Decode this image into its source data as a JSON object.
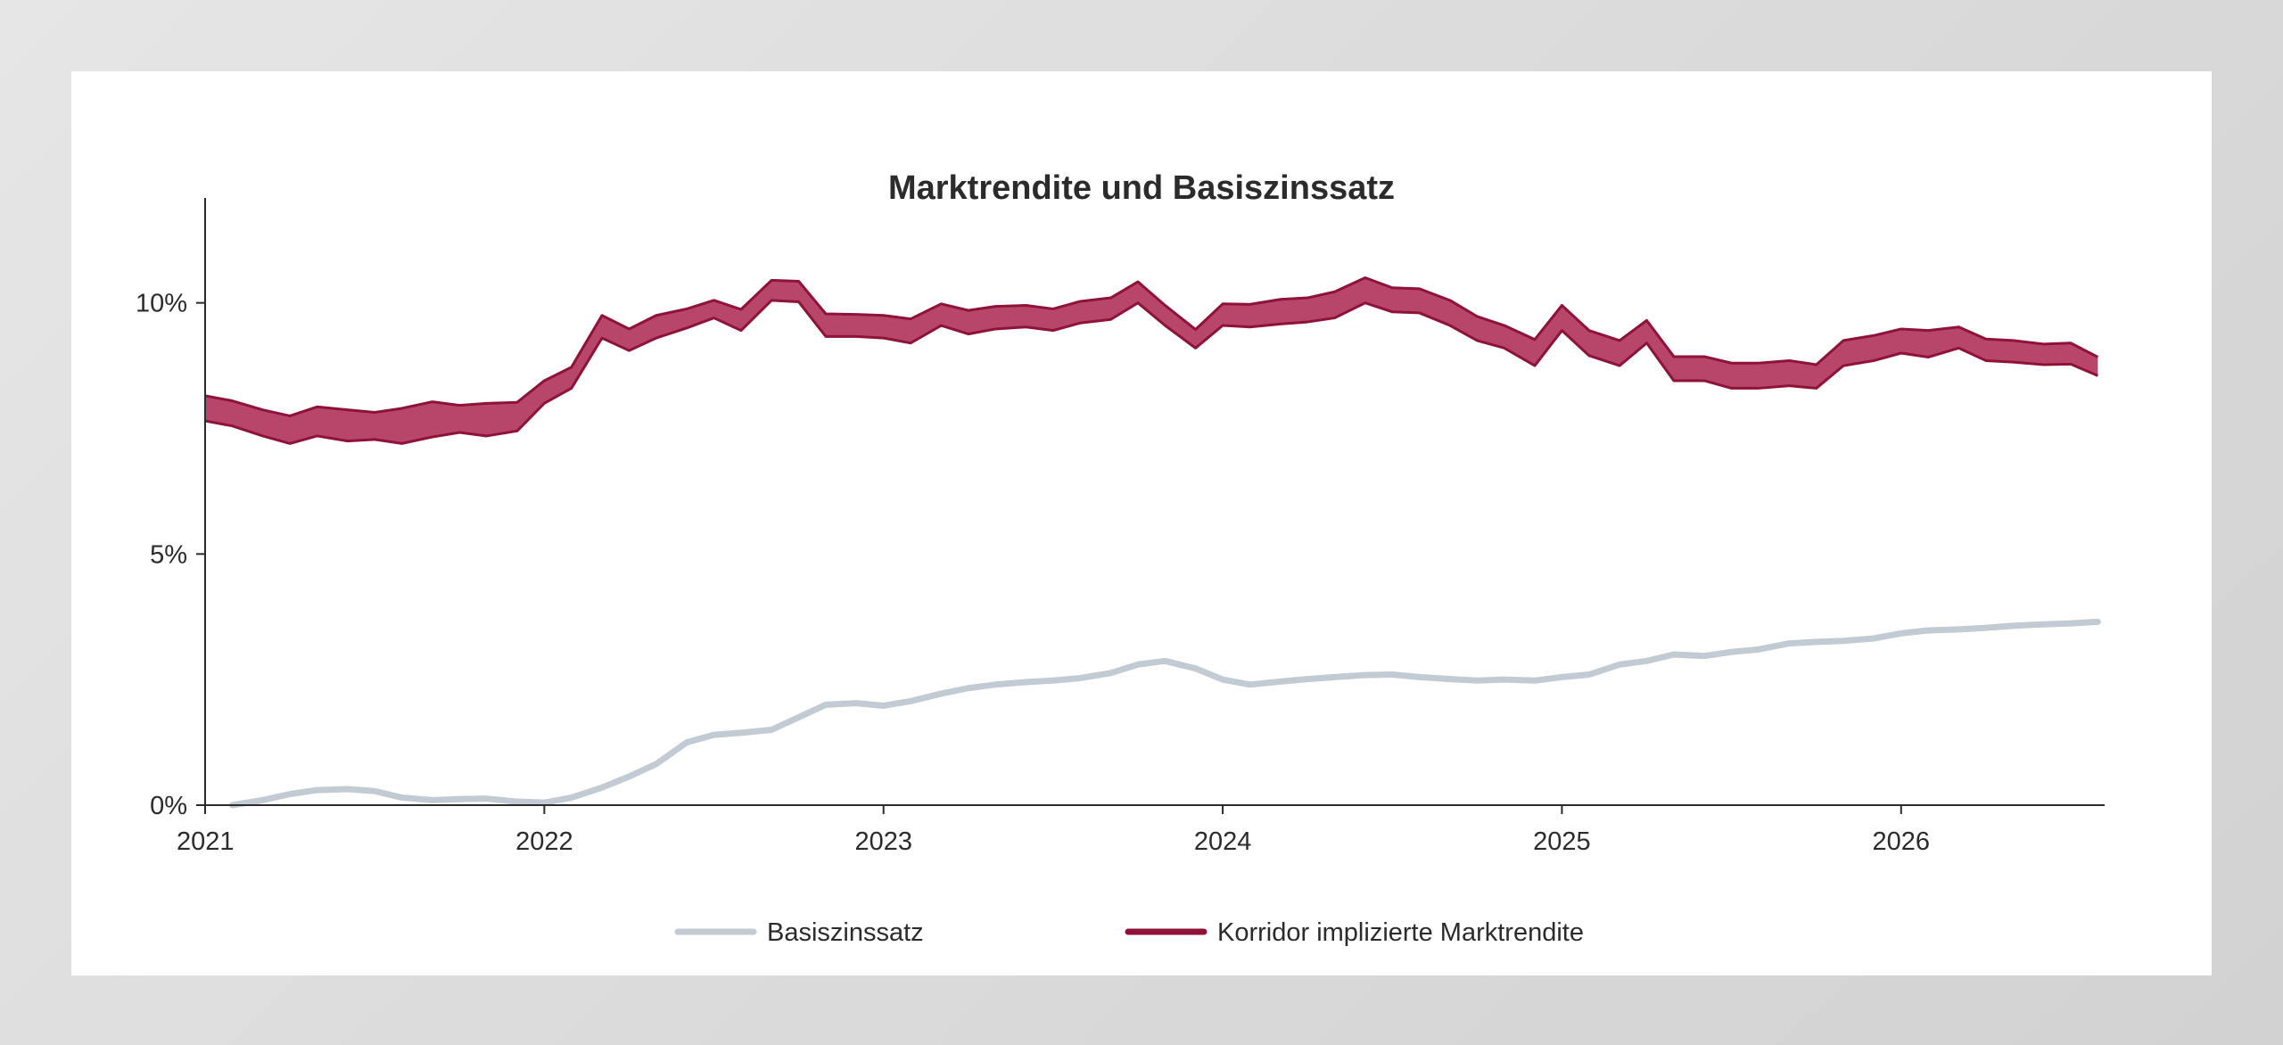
{
  "title": "Marktrendite und Basiszinssatz",
  "chart_data": {
    "type": "line",
    "title": "Marktrendite und Basiszinssatz",
    "x_unit": "year",
    "xlim": [
      2021,
      2026.6
    ],
    "ylim": [
      0,
      12
    ],
    "grid": false,
    "y_ticks": [
      {
        "value": 0,
        "label": "0%"
      },
      {
        "value": 5,
        "label": "5%"
      },
      {
        "value": 10,
        "label": "10%"
      }
    ],
    "x_ticks": [
      {
        "value": 2021,
        "label": "2021"
      },
      {
        "value": 2022,
        "label": "2022"
      },
      {
        "value": 2023,
        "label": "2023"
      },
      {
        "value": 2024,
        "label": "2024"
      },
      {
        "value": 2025,
        "label": "2025"
      },
      {
        "value": 2026,
        "label": "2026"
      }
    ],
    "legend_position": "bottom-center",
    "colors": {
      "basiszins": "#c2cbd3",
      "corridor_fill": "#b8456a",
      "corridor_edge": "#8f1238",
      "axis": "#2b2b2b"
    },
    "series": [
      {
        "name": "Basiszinssatz",
        "kind": "line",
        "x": [
          2021.08,
          2021.17,
          2021.25,
          2021.33,
          2021.42,
          2021.5,
          2021.58,
          2021.67,
          2021.75,
          2021.83,
          2021.92,
          2022.0,
          2022.08,
          2022.17,
          2022.25,
          2022.33,
          2022.42,
          2022.5,
          2022.58,
          2022.67,
          2022.75,
          2022.83,
          2022.92,
          2023.0,
          2023.08,
          2023.17,
          2023.25,
          2023.33,
          2023.42,
          2023.5,
          2023.58,
          2023.67,
          2023.75,
          2023.83,
          2023.92,
          2024.0,
          2024.08,
          2024.17,
          2024.25,
          2024.33,
          2024.42,
          2024.5,
          2024.58,
          2024.67,
          2024.75,
          2024.83,
          2024.92,
          2025.0,
          2025.08,
          2025.17,
          2025.25,
          2025.33,
          2025.42,
          2025.5,
          2025.58,
          2025.67,
          2025.75,
          2025.83,
          2025.92,
          2026.0,
          2026.08,
          2026.17,
          2026.25,
          2026.33,
          2026.42,
          2026.5,
          2026.58
        ],
        "y": [
          0.0,
          0.1,
          0.22,
          0.3,
          0.32,
          0.28,
          0.15,
          0.1,
          0.12,
          0.13,
          0.07,
          0.05,
          0.15,
          0.35,
          0.57,
          0.82,
          1.25,
          1.4,
          1.44,
          1.5,
          1.75,
          2.0,
          2.03,
          1.98,
          2.07,
          2.22,
          2.33,
          2.4,
          2.45,
          2.48,
          2.53,
          2.63,
          2.8,
          2.87,
          2.72,
          2.5,
          2.4,
          2.46,
          2.51,
          2.55,
          2.59,
          2.6,
          2.55,
          2.51,
          2.48,
          2.5,
          2.48,
          2.55,
          2.6,
          2.8,
          2.87,
          3.0,
          2.97,
          3.05,
          3.1,
          3.22,
          3.25,
          3.27,
          3.32,
          3.42,
          3.48,
          3.5,
          3.53,
          3.57,
          3.6,
          3.62,
          3.65
        ]
      },
      {
        "name": "Korridor implizierte Marktrendite",
        "kind": "band",
        "x": [
          2021.0,
          2021.08,
          2021.17,
          2021.25,
          2021.33,
          2021.42,
          2021.5,
          2021.58,
          2021.67,
          2021.75,
          2021.83,
          2021.92,
          2022.0,
          2022.08,
          2022.17,
          2022.25,
          2022.33,
          2022.42,
          2022.5,
          2022.58,
          2022.67,
          2022.75,
          2022.83,
          2022.92,
          2023.0,
          2023.08,
          2023.17,
          2023.25,
          2023.33,
          2023.42,
          2023.5,
          2023.58,
          2023.67,
          2023.75,
          2023.83,
          2023.92,
          2024.0,
          2024.08,
          2024.17,
          2024.25,
          2024.33,
          2024.42,
          2024.5,
          2024.58,
          2024.67,
          2024.75,
          2024.83,
          2024.92,
          2025.0,
          2025.08,
          2025.17,
          2025.25,
          2025.33,
          2025.42,
          2025.5,
          2025.58,
          2025.67,
          2025.75,
          2025.83,
          2025.92,
          2026.0,
          2026.08,
          2026.17,
          2026.25,
          2026.33,
          2026.42,
          2026.5,
          2026.58
        ],
        "lower": [
          7.65,
          7.55,
          7.35,
          7.2,
          7.35,
          7.25,
          7.28,
          7.2,
          7.33,
          7.42,
          7.35,
          7.45,
          8.0,
          8.3,
          9.3,
          9.05,
          9.3,
          9.5,
          9.7,
          9.45,
          10.05,
          10.02,
          9.33,
          9.33,
          9.3,
          9.2,
          9.55,
          9.38,
          9.48,
          9.52,
          9.45,
          9.6,
          9.67,
          10.0,
          9.55,
          9.1,
          9.55,
          9.52,
          9.58,
          9.62,
          9.7,
          10.0,
          9.82,
          9.8,
          9.55,
          9.25,
          9.1,
          8.75,
          9.45,
          8.95,
          8.75,
          9.2,
          8.45,
          8.45,
          8.3,
          8.3,
          8.35,
          8.3,
          8.75,
          8.85,
          9.0,
          8.92,
          9.1,
          8.85,
          8.82,
          8.77,
          8.78,
          8.55
        ],
        "upper": [
          8.15,
          8.05,
          7.87,
          7.75,
          7.93,
          7.87,
          7.82,
          7.9,
          8.03,
          7.96,
          8.0,
          8.02,
          8.45,
          8.72,
          9.75,
          9.48,
          9.75,
          9.88,
          10.05,
          9.87,
          10.45,
          10.43,
          9.78,
          9.77,
          9.75,
          9.68,
          9.98,
          9.85,
          9.93,
          9.95,
          9.88,
          10.03,
          10.1,
          10.42,
          9.95,
          9.47,
          9.98,
          9.97,
          10.07,
          10.1,
          10.22,
          10.5,
          10.3,
          10.28,
          10.05,
          9.73,
          9.55,
          9.27,
          9.95,
          9.45,
          9.25,
          9.65,
          8.93,
          8.93,
          8.8,
          8.8,
          8.85,
          8.77,
          9.25,
          9.35,
          9.48,
          9.45,
          9.52,
          9.28,
          9.25,
          9.18,
          9.2,
          8.92
        ]
      }
    ]
  },
  "legend": [
    {
      "label": "Basiszinssatz",
      "color": "#c2cbd3"
    },
    {
      "label": "Korridor implizierte Marktrendite",
      "color": "#8f1238"
    }
  ]
}
